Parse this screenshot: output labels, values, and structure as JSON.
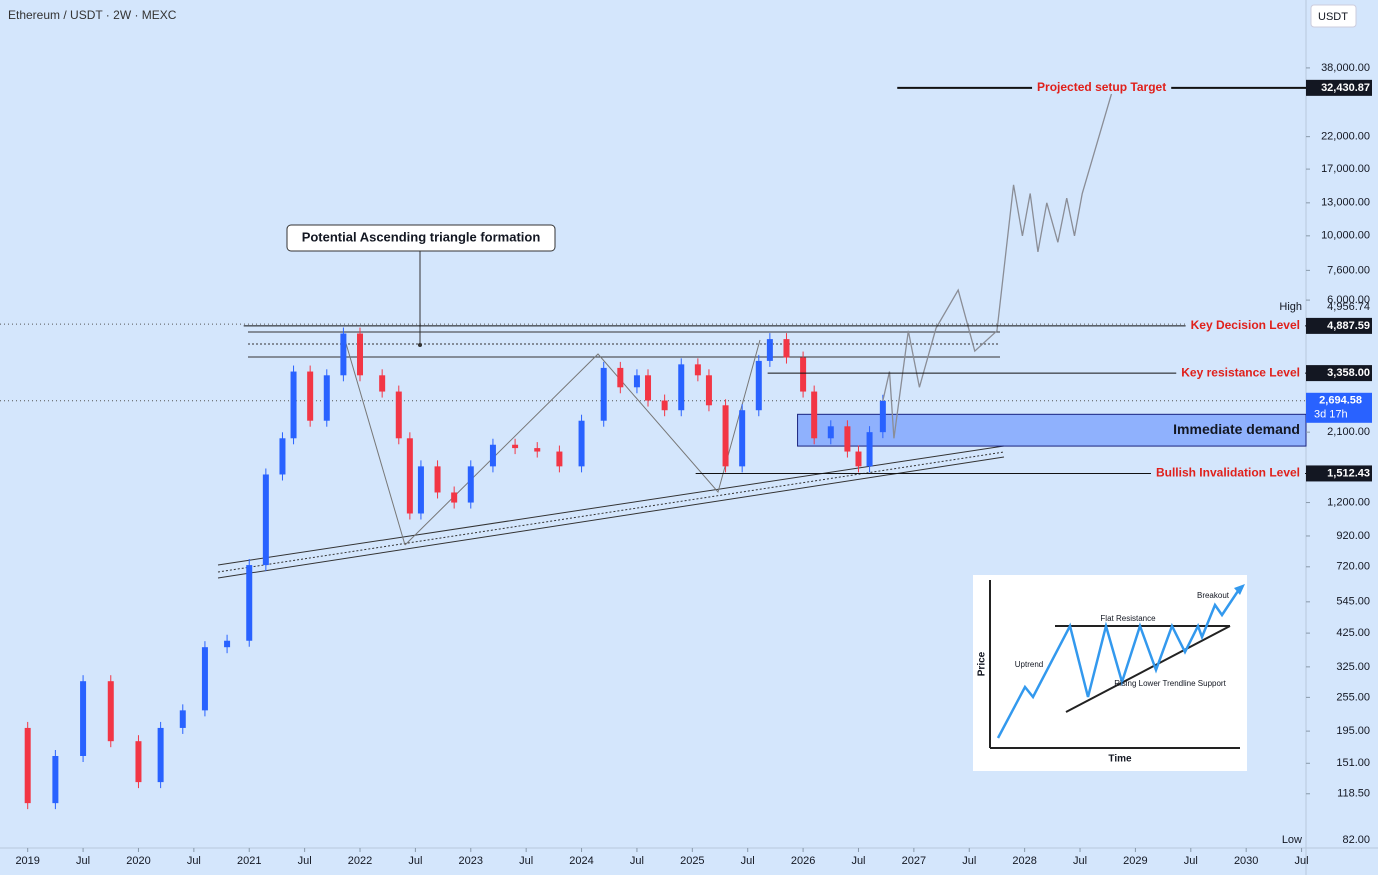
{
  "chart_data": {
    "type": "candlestick",
    "title": "Ethereum / USDT · 2W · MEXC",
    "currency": "USDT",
    "log_scale": true,
    "annotation": "Potential Ascending triangle formation",
    "xlim": [
      2018.75,
      2030.54
    ],
    "ylim": [
      77,
      65200
    ],
    "xticks": [
      2019,
      {
        "value": 2019.5,
        "label": "Jul"
      },
      2020,
      {
        "value": 2020.5,
        "label": "Jul"
      },
      2021,
      {
        "value": 2021.5,
        "label": "Jul"
      },
      2022,
      {
        "value": 2022.5,
        "label": "Jul"
      },
      2023,
      {
        "value": 2023.5,
        "label": "Jul"
      },
      2024,
      {
        "value": 2024.5,
        "label": "Jul"
      },
      2025,
      {
        "value": 2025.5,
        "label": "Jul"
      },
      2026,
      {
        "value": 2026.5,
        "label": "Jul"
      },
      2027,
      {
        "value": 2027.5,
        "label": "Jul"
      },
      2028,
      {
        "value": 2028.5,
        "label": "Jul"
      },
      2029,
      {
        "value": 2029.5,
        "label": "Jul"
      },
      2030,
      {
        "value": 2030.5,
        "label": "Jul"
      }
    ],
    "yticks": [
      {
        "value": 118.5,
        "label": "118.50"
      },
      {
        "value": 151,
        "label": "151.00"
      },
      {
        "value": 195,
        "label": "195.00"
      },
      {
        "value": 255,
        "label": "255.00"
      },
      {
        "value": 325,
        "label": "325.00"
      },
      {
        "value": 425,
        "label": "425.00"
      },
      {
        "value": 545,
        "label": "545.00"
      },
      {
        "value": 720,
        "label": "720.00"
      },
      {
        "value": 920,
        "label": "920.00"
      },
      {
        "value": 1200,
        "label": "1,200.00"
      },
      {
        "value": 2100,
        "label": "2,100.00"
      },
      {
        "value": 6000,
        "label": "6,000.00"
      },
      {
        "value": 7600,
        "label": "7,600.00"
      },
      {
        "value": 10000,
        "label": "10,000.00"
      },
      {
        "value": 13000,
        "label": "13,000.00"
      },
      {
        "value": 17000,
        "label": "17,000.00"
      },
      {
        "value": 22000,
        "label": "22,000.00"
      },
      {
        "value": 38000,
        "label": "38,000.00"
      }
    ],
    "series": [
      {
        "x": [
          2018.8,
          2019.0,
          2019.25,
          2019.5,
          2019.75,
          2020.0,
          2020.2,
          2020.4,
          2020.6,
          2020.8,
          2021.0,
          2021.15,
          2021.3,
          2021.4,
          2021.55,
          2021.7,
          2021.85,
          2022.0,
          2022.2,
          2022.35,
          2022.45,
          2022.55,
          2022.7,
          2022.85,
          2023.0,
          2023.2,
          2023.4,
          2023.6,
          2023.8,
          2024.0,
          2024.2,
          2024.35,
          2024.5,
          2024.6,
          2024.75,
          2024.9,
          2025.05,
          2025.15,
          2025.3,
          2025.45,
          2025.6,
          2025.7,
          2025.85,
          2026.0,
          2026.1,
          2026.25,
          2026.4,
          2026.5,
          2026.6,
          2026.72
        ],
        "values": [
          200,
          110,
          160,
          290,
          180,
          130,
          200,
          230,
          380,
          400,
          730,
          1500,
          2000,
          3400,
          2300,
          3300,
          4600,
          3300,
          2900,
          2000,
          1100,
          1600,
          1300,
          1200,
          1600,
          1900,
          1850,
          1800,
          1600,
          2300,
          3500,
          3000,
          3300,
          2700,
          2500,
          3600,
          3300,
          2600,
          1600,
          2500,
          3700,
          4400,
          3800,
          2900,
          2000,
          2200,
          1800,
          1600,
          2100,
          2694.58
        ],
        "up_color": "#2962ff",
        "down_color": "#f23645"
      },
      {
        "x": [
          2026.72,
          2026.78,
          2026.82,
          2026.95,
          2027.05,
          2027.2,
          2027.4,
          2027.55,
          2027.75,
          2027.9,
          2027.98,
          2028.05,
          2028.12,
          2028.2,
          2028.3,
          2028.38,
          2028.45,
          2028.52,
          2028.8
        ],
        "values": [
          2694.58,
          3400,
          2000,
          4700,
          3000,
          4800,
          6500,
          4000,
          4700,
          15000,
          10000,
          14000,
          8800,
          13000,
          9500,
          13500,
          10000,
          14000,
          32430.87
        ],
        "color": "#8a8d96"
      }
    ],
    "levels": [
      {
        "label": "Projected setup Target",
        "value": 32430.87,
        "value_label": "32,430.87",
        "color": "#e0201b",
        "from": 2026.85
      },
      {
        "label": "Key Decision Level",
        "value": 4887.59,
        "value_label": "4,887.59",
        "color": "#e0201b",
        "from": 2020.95
      },
      {
        "label": "Key resistance Level",
        "value": 3358.0,
        "value_label": "3,358.00",
        "color": "#e0201b",
        "from": 2025.68
      },
      {
        "label": "Bullish Invalidation Level",
        "value": 1512.43,
        "value_label": "1,512.43",
        "color": "#e0201b",
        "from": 2025.03
      }
    ],
    "demand_zone": {
      "label": "Immediate demand",
      "range": [
        1880,
        2420
      ],
      "from": 2025.95,
      "color": "#2962ff"
    },
    "high": {
      "label": "High",
      "value": 4956.74,
      "value_label": "4,956.74"
    },
    "low": {
      "label": "Low",
      "value": 82.0,
      "value_label": "82.00"
    },
    "last": {
      "value": 2694.58,
      "value_label": "2,694.58",
      "countdown": "3d 17h",
      "color": "#2962ff"
    },
    "inset": {
      "y_label": "Price",
      "x_label": "Time",
      "uptrend": "Uptrend",
      "resistance": "Flat Resistance",
      "breakout": "Breakout",
      "support": "Rising Lower Trendline Support"
    }
  }
}
